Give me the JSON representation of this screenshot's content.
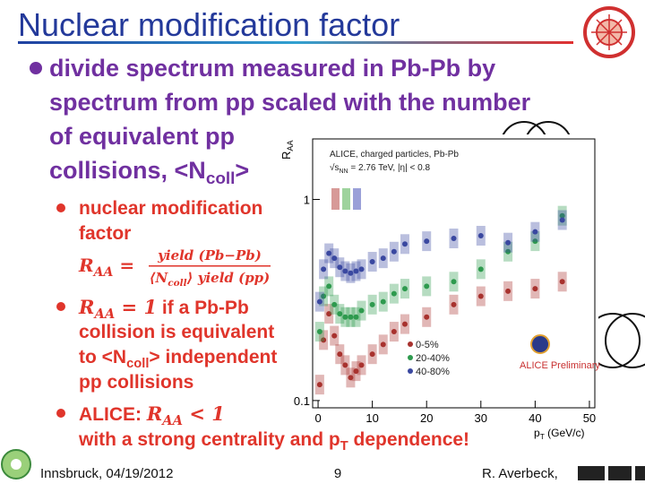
{
  "slide": {
    "title": "Nuclear modification factor",
    "main_bullet": [
      "divide spectrum measured in Pb-Pb by",
      "spectrum from pp scaled with the number",
      "of equivalent pp",
      [
        "collisions, <N",
        "coll",
        ">"
      ]
    ],
    "sub_bullets": [
      {
        "lines": [
          "nuclear modification",
          "factor"
        ],
        "formula": {
          "lhs": [
            "R",
            "AA",
            " ="
          ],
          "numerator": "yield (Pb−Pb)",
          "denominator": [
            "⟨N",
            "coll",
            "⟩ yield (pp)"
          ]
        }
      },
      {
        "first": {
          "math": [
            "R",
            "AA",
            " = 1"
          ],
          "text": " if a Pb-Pb"
        },
        "lines": [
          "collision is equivalent",
          [
            "to <N",
            "coll",
            "> independent"
          ],
          "pp collisions"
        ]
      },
      {
        "first": {
          "text": "ALICE: ",
          "math": [
            "R",
            "AA",
            " < 1"
          ]
        },
        "lines": [
          [
            "with a strong centrality and p",
            "T",
            " dependence!"
          ]
        ]
      }
    ],
    "footer": {
      "location_date": "Innsbruck, 04/19/2012",
      "page": "9",
      "author": "R. Averbeck,"
    }
  },
  "chart_data": {
    "type": "scatter",
    "annotations": [
      "ALICE, charged particles, Pb-Pb",
      [
        "√s",
        "NN",
        " = 2.76 TeV, |η| < 0.8"
      ],
      "ALICE Preliminary"
    ],
    "ylabel": [
      "R",
      "AA"
    ],
    "xlabel": [
      "p",
      "T",
      " (GeV/c)"
    ],
    "x": [
      0.3,
      1,
      2,
      3,
      4,
      5,
      6,
      7,
      8,
      10,
      12,
      14,
      16,
      20,
      25,
      30,
      35,
      40,
      45
    ],
    "series": [
      {
        "name": "0-5%",
        "color": "#a8322e",
        "values": [
          0.12,
          0.2,
          0.27,
          0.21,
          0.17,
          0.15,
          0.13,
          0.14,
          0.15,
          0.17,
          0.19,
          0.22,
          0.24,
          0.26,
          0.3,
          0.33,
          0.35,
          0.36,
          0.39
        ]
      },
      {
        "name": "20-40%",
        "color": "#2e9a4e",
        "values": [
          0.22,
          0.33,
          0.37,
          0.3,
          0.27,
          0.26,
          0.26,
          0.26,
          0.28,
          0.3,
          0.31,
          0.34,
          0.36,
          0.37,
          0.39,
          0.45,
          0.55,
          0.62,
          0.83
        ]
      },
      {
        "name": "40-80%",
        "color": "#3a48a0",
        "values": [
          0.31,
          0.45,
          0.54,
          0.51,
          0.46,
          0.44,
          0.43,
          0.44,
          0.45,
          0.49,
          0.51,
          0.55,
          0.6,
          0.62,
          0.64,
          0.66,
          0.61,
          0.69,
          0.79
        ]
      }
    ],
    "xlim": [
      -1,
      51
    ],
    "ylim": [
      0.092,
      2
    ],
    "xticks": [
      0,
      10,
      20,
      30,
      40,
      50
    ],
    "yticks": [
      0.1,
      1
    ],
    "log_y": true
  }
}
